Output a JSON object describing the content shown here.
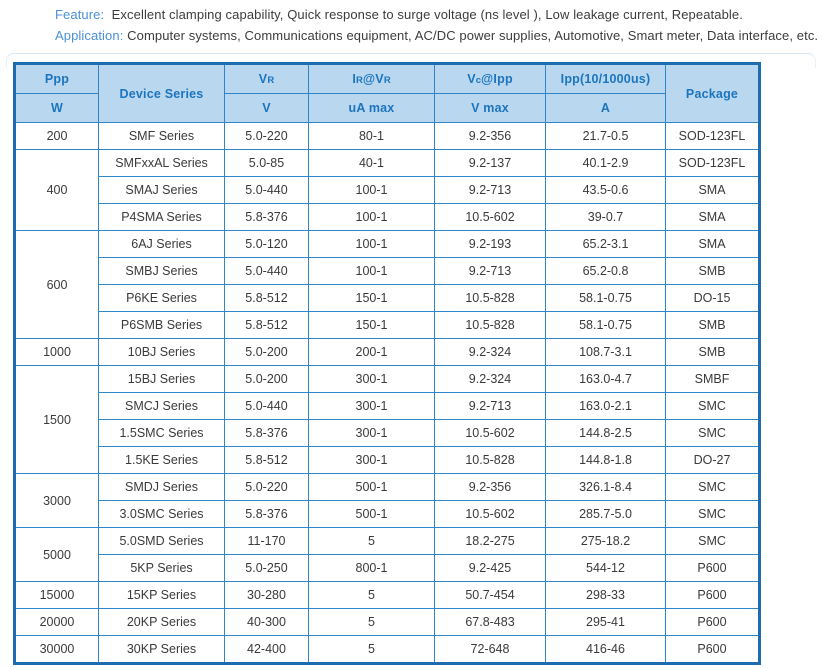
{
  "intro": {
    "feature_label": "Feature:",
    "feature_text": "Excellent clamping capability, Quick response to surge voltage (ns level ), Low leakage current,  Repeatable.",
    "application_label": "Application:",
    "application_text": "Computer systems,  Communications equipment, AC/DC power supplies, Automotive, Smart meter, Data interface, etc."
  },
  "colors": {
    "header_bg": "#b9d8ef",
    "header_text": "#1c74be",
    "grid_line": "#2e86c8",
    "outer_border": "#1d6cb0",
    "body_text": "#3a3a3a",
    "intro_label": "#4a90d8"
  },
  "table": {
    "header": {
      "ppp": "Ppp",
      "ppp_unit": "W",
      "device_series": "Device Series",
      "vr": {
        "v": "V",
        "r": "R"
      },
      "vr_unit": "V",
      "ir": {
        "i": "I",
        "r1": "R",
        "at_v": "@V",
        "r2": "R"
      },
      "ir_unit": "uA max",
      "vc": {
        "v": "V",
        "c": "c",
        "rest": "@Ipp"
      },
      "vc_unit": "V max",
      "ipp": "Ipp(10/1000us)",
      "ipp_unit": "A",
      "package": "Package"
    },
    "groups": [
      {
        "ppp": "200",
        "rows": [
          {
            "series": "SMF Series",
            "vr": "5.0-220",
            "ir": "80-1",
            "vc": "9.2-356",
            "ipp": "21.7-0.5",
            "pkg": "SOD-123FL"
          }
        ]
      },
      {
        "ppp": "400",
        "rows": [
          {
            "series": "SMFxxAL Series",
            "vr": "5.0-85",
            "ir": "40-1",
            "vc": "9.2-137",
            "ipp": "40.1-2.9",
            "pkg": "SOD-123FL"
          },
          {
            "series": "SMAJ Series",
            "vr": "5.0-440",
            "ir": "100-1",
            "vc": "9.2-713",
            "ipp": "43.5-0.6",
            "pkg": "SMA"
          },
          {
            "series": "P4SMA Series",
            "vr": "5.8-376",
            "ir": "100-1",
            "vc": "10.5-602",
            "ipp": "39-0.7",
            "pkg": "SMA"
          }
        ]
      },
      {
        "ppp": "600",
        "rows": [
          {
            "series": "6AJ Series",
            "vr": "5.0-120",
            "ir": "100-1",
            "vc": "9.2-193",
            "ipp": "65.2-3.1",
            "pkg": "SMA"
          },
          {
            "series": "SMBJ Series",
            "vr": "5.0-440",
            "ir": "100-1",
            "vc": "9.2-713",
            "ipp": "65.2-0.8",
            "pkg": "SMB"
          },
          {
            "series": "P6KE Series",
            "vr": "5.8-512",
            "ir": "150-1",
            "vc": "10.5-828",
            "ipp": "58.1-0.75",
            "pkg": "DO-15"
          },
          {
            "series": "P6SMB Series",
            "vr": "5.8-512",
            "ir": "150-1",
            "vc": "10.5-828",
            "ipp": "58.1-0.75",
            "pkg": "SMB"
          }
        ]
      },
      {
        "ppp": "1000",
        "rows": [
          {
            "series": "10BJ Series",
            "vr": "5.0-200",
            "ir": "200-1",
            "vc": "9.2-324",
            "ipp": "108.7-3.1",
            "pkg": "SMB"
          }
        ]
      },
      {
        "ppp": "1500",
        "rows": [
          {
            "series": "15BJ Series",
            "vr": "5.0-200",
            "ir": "300-1",
            "vc": "9.2-324",
            "ipp": "163.0-4.7",
            "pkg": "SMBF"
          },
          {
            "series": "SMCJ Series",
            "vr": "5.0-440",
            "ir": "300-1",
            "vc": "9.2-713",
            "ipp": "163.0-2.1",
            "pkg": "SMC"
          },
          {
            "series": "1.5SMC Series",
            "vr": "5.8-376",
            "ir": "300-1",
            "vc": "10.5-602",
            "ipp": "144.8-2.5",
            "pkg": "SMC"
          },
          {
            "series": "1.5KE Series",
            "vr": "5.8-512",
            "ir": "300-1",
            "vc": "10.5-828",
            "ipp": "144.8-1.8",
            "pkg": "DO-27"
          }
        ]
      },
      {
        "ppp": "3000",
        "rows": [
          {
            "series": "SMDJ Series",
            "vr": "5.0-220",
            "ir": "500-1",
            "vc": "9.2-356",
            "ipp": "326.1-8.4",
            "pkg": "SMC"
          },
          {
            "series": "3.0SMC Series",
            "vr": "5.8-376",
            "ir": "500-1",
            "vc": "10.5-602",
            "ipp": "285.7-5.0",
            "pkg": "SMC"
          }
        ]
      },
      {
        "ppp": "5000",
        "rows": [
          {
            "series": "5.0SMD Series",
            "vr": "11-170",
            "ir": "5",
            "vc": "18.2-275",
            "ipp": "275-18.2",
            "pkg": "SMC"
          },
          {
            "series": "5KP Series",
            "vr": "5.0-250",
            "ir": "800-1",
            "vc": "9.2-425",
            "ipp": "544-12",
            "pkg": "P600"
          }
        ]
      },
      {
        "ppp": "15000",
        "rows": [
          {
            "series": "15KP Series",
            "vr": "30-280",
            "ir": "5",
            "vc": "50.7-454",
            "ipp": "298-33",
            "pkg": "P600"
          }
        ]
      },
      {
        "ppp": "20000",
        "rows": [
          {
            "series": "20KP Series",
            "vr": "40-300",
            "ir": "5",
            "vc": "67.8-483",
            "ipp": "295-41",
            "pkg": "P600"
          }
        ]
      },
      {
        "ppp": "30000",
        "rows": [
          {
            "series": "30KP Series",
            "vr": "42-400",
            "ir": "5",
            "vc": "72-648",
            "ipp": "416-46",
            "pkg": "P600"
          }
        ]
      }
    ]
  }
}
